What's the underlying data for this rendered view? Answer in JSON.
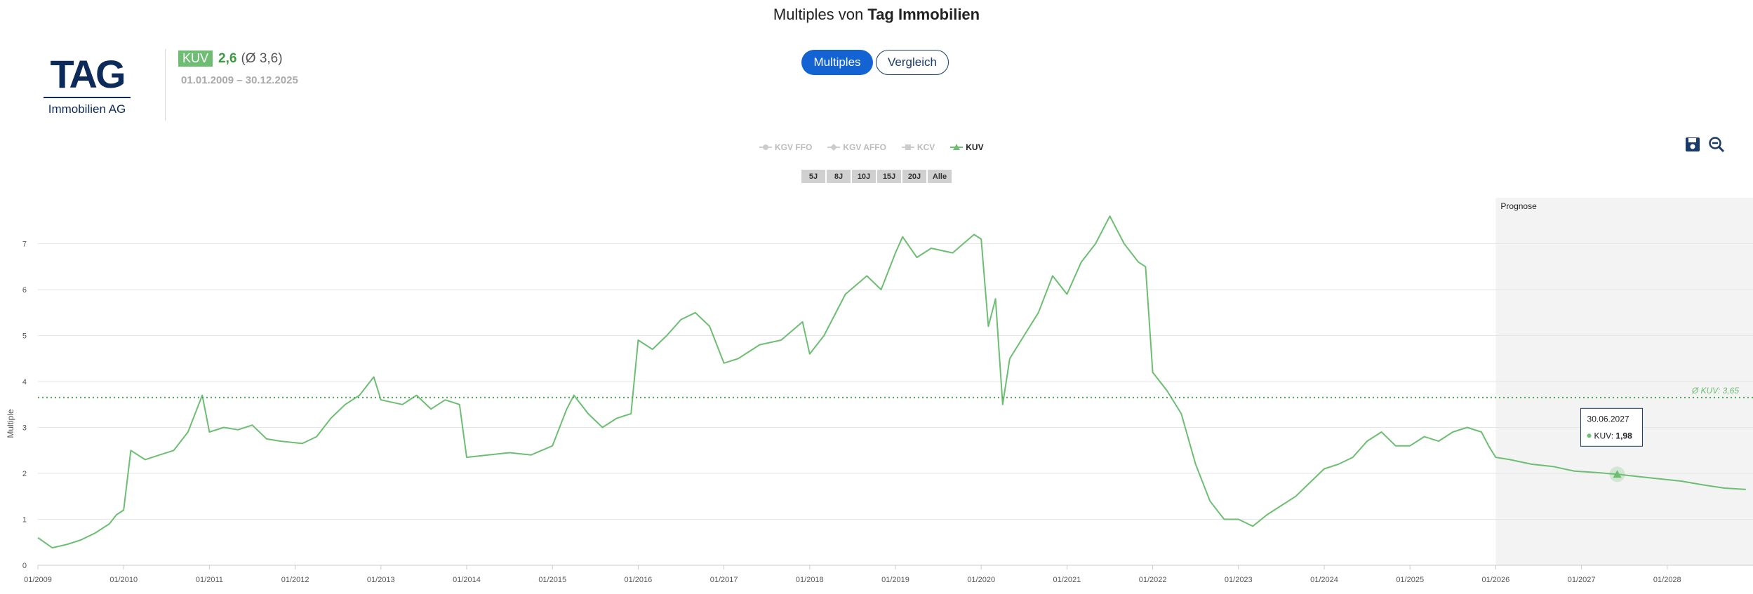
{
  "header": {
    "title_prefix": "Multiples von",
    "title_company": "Tag Immobilien",
    "logo_text": "TAG",
    "logo_sub": "Immobilien AG",
    "kpi_badge": "KUV",
    "kpi_value": "2,6",
    "kpi_avg": "(Ø 3,6)",
    "period": "01.01.2009 – 30.12.2025"
  },
  "tabs": [
    {
      "label": "Multiples",
      "active": true
    },
    {
      "label": "Vergleich",
      "active": false
    }
  ],
  "legend": [
    {
      "label": "KGV FFO",
      "active": false,
      "icon": "circle-marker-icon"
    },
    {
      "label": "KGV AFFO",
      "active": false,
      "icon": "diamond-marker-icon"
    },
    {
      "label": "KCV",
      "active": false,
      "icon": "square-marker-icon"
    },
    {
      "label": "KUV",
      "active": true,
      "icon": "triangle-marker-icon"
    }
  ],
  "ranges": [
    "5J",
    "8J",
    "10J",
    "15J",
    "20J",
    "Alle"
  ],
  "tools": [
    "save-icon",
    "zoom-out-icon"
  ],
  "colors": {
    "line": "#6dbe73",
    "accent": "#1463d2",
    "navy": "#0d2b5a",
    "forecast_bg": "#f3f3f3"
  },
  "chart_data": {
    "type": "line",
    "ylabel": "Multiple",
    "ylim": [
      0,
      8
    ],
    "yticks": [
      "0",
      "1",
      "2",
      "3",
      "4",
      "5",
      "6",
      "7"
    ],
    "xlim": [
      "2009-01",
      "2029-01"
    ],
    "xticks": [
      "01/2009",
      "01/2010",
      "01/2011",
      "01/2012",
      "01/2013",
      "01/2014",
      "01/2015",
      "01/2016",
      "01/2017",
      "01/2018",
      "01/2019",
      "01/2020",
      "01/2021",
      "01/2022",
      "01/2023",
      "01/2024",
      "01/2025",
      "01/2026",
      "01/2027",
      "01/2028"
    ],
    "forecast_label": "Prognose",
    "forecast_start": "2026-01",
    "avg_label": "Ø KUV: 3,65",
    "avg_value": 3.65,
    "tooltip": {
      "date": "30.06.2027",
      "label": "KUV:",
      "value": "1,98",
      "x": "2027-06",
      "y": 1.98
    },
    "series": [
      {
        "name": "KUV",
        "history": [
          [
            "2009-01",
            0.6
          ],
          [
            "2009-03",
            0.38
          ],
          [
            "2009-05",
            0.45
          ],
          [
            "2009-07",
            0.55
          ],
          [
            "2009-09",
            0.7
          ],
          [
            "2009-11",
            0.9
          ],
          [
            "2009-12",
            1.1
          ],
          [
            "2010-01",
            1.2
          ],
          [
            "2010-02",
            2.5
          ],
          [
            "2010-04",
            2.3
          ],
          [
            "2010-06",
            2.4
          ],
          [
            "2010-08",
            2.5
          ],
          [
            "2010-10",
            2.9
          ],
          [
            "2010-12",
            3.7
          ],
          [
            "2011-01",
            2.9
          ],
          [
            "2011-03",
            3.0
          ],
          [
            "2011-05",
            2.95
          ],
          [
            "2011-07",
            3.05
          ],
          [
            "2011-09",
            2.75
          ],
          [
            "2011-11",
            2.7
          ],
          [
            "2012-02",
            2.65
          ],
          [
            "2012-04",
            2.8
          ],
          [
            "2012-06",
            3.2
          ],
          [
            "2012-08",
            3.5
          ],
          [
            "2012-10",
            3.7
          ],
          [
            "2012-12",
            4.1
          ],
          [
            "2013-01",
            3.6
          ],
          [
            "2013-04",
            3.5
          ],
          [
            "2013-06",
            3.7
          ],
          [
            "2013-08",
            3.4
          ],
          [
            "2013-10",
            3.6
          ],
          [
            "2013-12",
            3.5
          ],
          [
            "2014-01",
            2.35
          ],
          [
            "2014-04",
            2.4
          ],
          [
            "2014-07",
            2.45
          ],
          [
            "2014-10",
            2.4
          ],
          [
            "2015-01",
            2.6
          ],
          [
            "2015-03",
            3.4
          ],
          [
            "2015-04",
            3.7
          ],
          [
            "2015-06",
            3.3
          ],
          [
            "2015-08",
            3.0
          ],
          [
            "2015-10",
            3.2
          ],
          [
            "2015-12",
            3.3
          ],
          [
            "2016-01",
            4.9
          ],
          [
            "2016-03",
            4.7
          ],
          [
            "2016-05",
            5.0
          ],
          [
            "2016-07",
            5.35
          ],
          [
            "2016-09",
            5.5
          ],
          [
            "2016-11",
            5.2
          ],
          [
            "2017-01",
            4.4
          ],
          [
            "2017-03",
            4.5
          ],
          [
            "2017-06",
            4.8
          ],
          [
            "2017-09",
            4.9
          ],
          [
            "2017-12",
            5.3
          ],
          [
            "2018-01",
            4.6
          ],
          [
            "2018-03",
            5.0
          ],
          [
            "2018-06",
            5.9
          ],
          [
            "2018-09",
            6.3
          ],
          [
            "2018-11",
            6.0
          ],
          [
            "2019-01",
            6.8
          ],
          [
            "2019-02",
            7.15
          ],
          [
            "2019-04",
            6.7
          ],
          [
            "2019-06",
            6.9
          ],
          [
            "2019-09",
            6.8
          ],
          [
            "2019-12",
            7.2
          ],
          [
            "2020-01",
            7.1
          ],
          [
            "2020-02",
            5.2
          ],
          [
            "2020-03",
            5.8
          ],
          [
            "2020-04",
            3.5
          ],
          [
            "2020-05",
            4.5
          ],
          [
            "2020-07",
            5.0
          ],
          [
            "2020-09",
            5.5
          ],
          [
            "2020-11",
            6.3
          ],
          [
            "2021-01",
            5.9
          ],
          [
            "2021-03",
            6.6
          ],
          [
            "2021-05",
            7.0
          ],
          [
            "2021-07",
            7.6
          ],
          [
            "2021-09",
            7.0
          ],
          [
            "2021-11",
            6.6
          ],
          [
            "2021-12",
            6.5
          ],
          [
            "2022-01",
            4.2
          ],
          [
            "2022-03",
            3.8
          ],
          [
            "2022-05",
            3.3
          ],
          [
            "2022-07",
            2.2
          ],
          [
            "2022-09",
            1.4
          ],
          [
            "2022-11",
            1.0
          ],
          [
            "2023-01",
            1.0
          ],
          [
            "2023-03",
            0.85
          ],
          [
            "2023-05",
            1.1
          ],
          [
            "2023-07",
            1.3
          ],
          [
            "2023-09",
            1.5
          ],
          [
            "2023-11",
            1.8
          ],
          [
            "2024-01",
            2.1
          ],
          [
            "2024-03",
            2.2
          ],
          [
            "2024-05",
            2.35
          ],
          [
            "2024-07",
            2.7
          ],
          [
            "2024-09",
            2.9
          ],
          [
            "2024-11",
            2.6
          ],
          [
            "2025-01",
            2.6
          ],
          [
            "2025-03",
            2.8
          ],
          [
            "2025-05",
            2.7
          ],
          [
            "2025-07",
            2.9
          ],
          [
            "2025-09",
            3.0
          ],
          [
            "2025-11",
            2.9
          ],
          [
            "2025-12",
            2.6
          ]
        ],
        "forecast": [
          [
            "2026-01",
            2.35
          ],
          [
            "2026-03",
            2.3
          ],
          [
            "2026-06",
            2.2
          ],
          [
            "2026-09",
            2.15
          ],
          [
            "2026-12",
            2.05
          ],
          [
            "2027-03",
            2.02
          ],
          [
            "2027-06",
            1.98
          ],
          [
            "2027-09",
            1.93
          ],
          [
            "2027-12",
            1.88
          ],
          [
            "2028-03",
            1.83
          ],
          [
            "2028-06",
            1.75
          ],
          [
            "2028-09",
            1.68
          ],
          [
            "2028-12",
            1.65
          ]
        ]
      }
    ]
  }
}
